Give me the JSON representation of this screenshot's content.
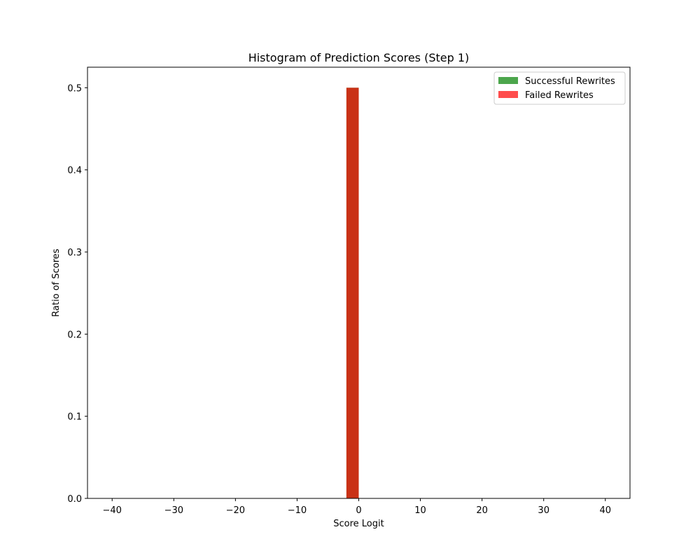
{
  "chart_data": {
    "type": "bar",
    "title": "Histogram of Prediction Scores (Step 1)",
    "xlabel": "Score Logit",
    "ylabel": "Ratio of Scores",
    "xlim": [
      -44,
      44
    ],
    "ylim": [
      0,
      0.525
    ],
    "xticks": [
      -40,
      -30,
      -20,
      -10,
      0,
      10,
      20,
      30,
      40
    ],
    "yticks": [
      0.0,
      0.1,
      0.2,
      0.3,
      0.4,
      0.5
    ],
    "grid": false,
    "legend_position": "top-right",
    "bin_width": 2,
    "series": [
      {
        "name": "Successful Rewrites",
        "color": "#008000",
        "alpha": 0.7,
        "bins": [
          {
            "x0": -2,
            "x1": 0,
            "value": 0.5
          }
        ]
      },
      {
        "name": "Failed Rewrites",
        "color": "#ff0000",
        "alpha": 0.7,
        "bins": [
          {
            "x0": -2,
            "x1": 0,
            "value": 0.5
          }
        ]
      }
    ]
  }
}
